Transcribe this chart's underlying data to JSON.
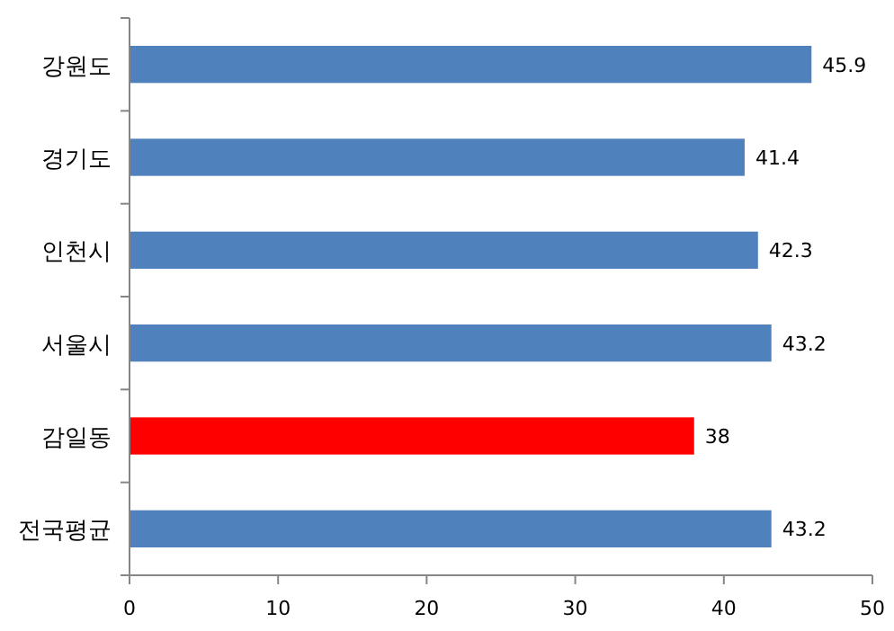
{
  "chart_data": {
    "type": "bar",
    "orientation": "horizontal",
    "categories": [
      "강원도",
      "경기도",
      "인천시",
      "서울시",
      "감일동",
      "전국평균"
    ],
    "values": [
      45.9,
      41.4,
      42.3,
      43.2,
      38,
      43.2
    ],
    "colors": [
      "#4f81bd",
      "#4f81bd",
      "#4f81bd",
      "#4f81bd",
      "#ff0000",
      "#4f81bd"
    ],
    "xlim": [
      0,
      50
    ],
    "xticks": [
      0,
      10,
      20,
      30,
      40,
      50
    ],
    "data_labels": true,
    "grid": false
  }
}
